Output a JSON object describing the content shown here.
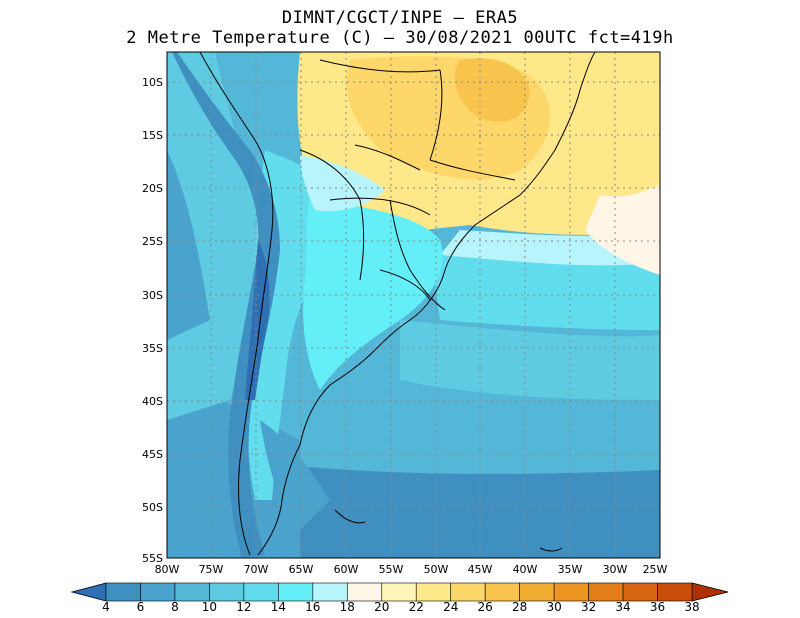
{
  "title": {
    "line1": "DIMNT/CGCT/INPE –  ERA5",
    "line2": "2 Metre Temperature (C) –  30/08/2021 00UTC fct=419h"
  },
  "map": {
    "lat_labels": [
      "10S",
      "15S",
      "20S",
      "25S",
      "30S",
      "35S",
      "40S",
      "45S",
      "50S",
      "55S"
    ],
    "lon_labels": [
      "80W",
      "75W",
      "70W",
      "65W",
      "60W",
      "55W",
      "50W",
      "45W",
      "40W",
      "35W",
      "30W",
      "25W"
    ],
    "lon_range": [
      -80,
      -25
    ],
    "lat_range": [
      -55,
      -7.5
    ]
  },
  "colorbar": {
    "labels": [
      "4",
      "6",
      "8",
      "10",
      "12",
      "14",
      "16",
      "18",
      "20",
      "22",
      "24",
      "26",
      "28",
      "30",
      "32",
      "34",
      "36",
      "38"
    ],
    "colors": [
      "#3f8fc0",
      "#4aa3cd",
      "#55b7d8",
      "#5ecbe3",
      "#62ddee",
      "#64eff8",
      "#b8f4fb",
      "#fff6e8",
      "#fff4b8",
      "#ffe88a",
      "#fdd76a",
      "#f9c44e",
      "#f2ae33",
      "#ec9621",
      "#e37d17",
      "#d66410",
      "#c94e09",
      "#bb3a05"
    ],
    "under_color": "#2f6fb3",
    "over_color": "#b03004"
  }
}
